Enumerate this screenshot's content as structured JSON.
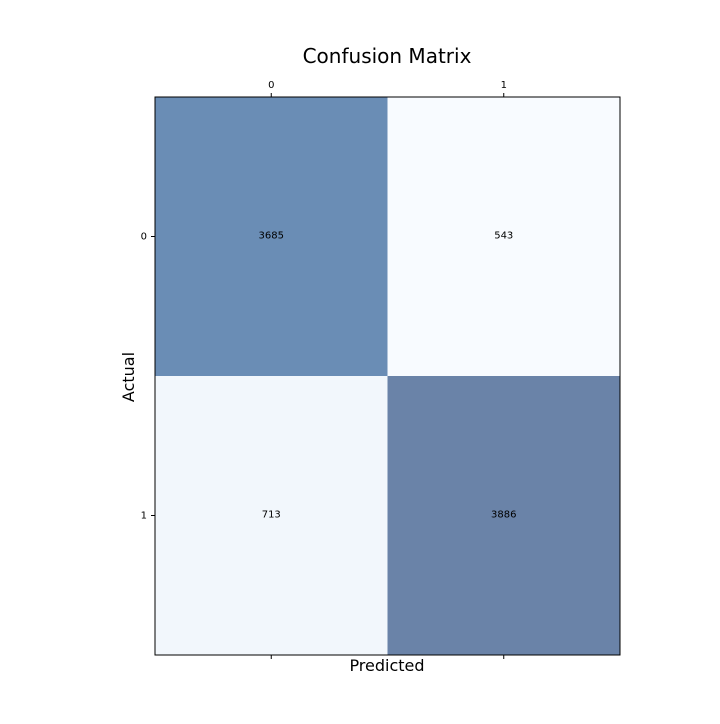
{
  "chart_data": {
    "type": "heatmap",
    "title": "Confusion Matrix",
    "xlabel": "Predicted",
    "ylabel": "Actual",
    "x_categories": [
      "0",
      "1"
    ],
    "y_categories": [
      "0",
      "1"
    ],
    "values": [
      [
        3685,
        543
      ],
      [
        713,
        3886
      ]
    ],
    "x_ticks_position": "top",
    "grid": false,
    "legend": "none",
    "colors": {
      "cells": [
        [
          "#6a8db5",
          "#f8fbff"
        ],
        [
          "#f2f7fc",
          "#6a83a8"
        ]
      ],
      "frame": "#000000",
      "text": "#000000"
    }
  }
}
